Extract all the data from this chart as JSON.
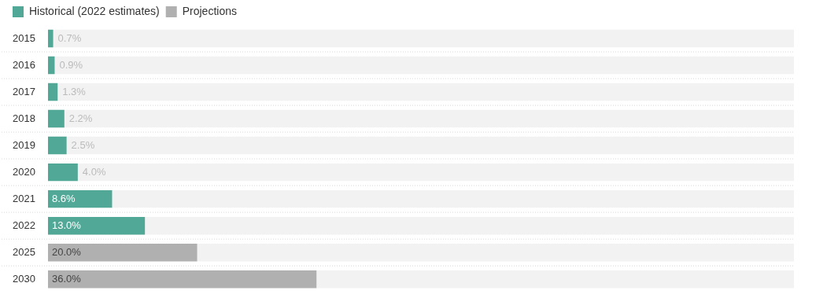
{
  "chart_data": {
    "type": "bar",
    "orientation": "horizontal",
    "stacked": true,
    "legend": "top left",
    "xlim": [
      0,
      100
    ],
    "tick_labels": "y",
    "categories": [
      "2015",
      "2016",
      "2017",
      "2018",
      "2019",
      "2020",
      "2021",
      "2022",
      "2025",
      "2030"
    ],
    "series": [
      {
        "name": "Historical (2022 estimates)",
        "color": "#52a896",
        "values": [
          0.7,
          0.9,
          1.3,
          2.2,
          2.5,
          4.0,
          8.6,
          13.0,
          null,
          null
        ],
        "value_labels": [
          "0.7%",
          "0.9%",
          "1.3%",
          "2.2%",
          "2.5%",
          "4.0%",
          "8.6%",
          "13.0%",
          null,
          null
        ]
      },
      {
        "name": "Projections",
        "color": "#b0b0b0",
        "values": [
          null,
          null,
          null,
          null,
          null,
          null,
          null,
          null,
          20.0,
          36.0
        ],
        "value_labels": [
          null,
          null,
          null,
          null,
          null,
          null,
          null,
          null,
          "20.0%",
          "36.0%"
        ]
      }
    ]
  }
}
